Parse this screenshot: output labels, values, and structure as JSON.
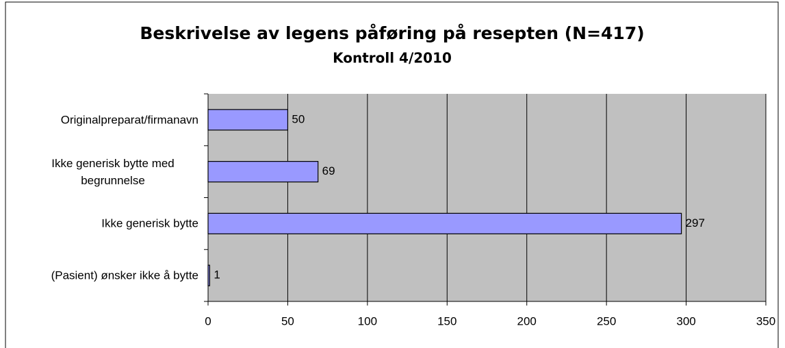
{
  "chart_data": {
    "type": "hbar",
    "title": "Beskrivelse av legens påføring på resepten (N=417)",
    "subtitle": "Kontroll 4/2010",
    "categories": [
      "Originalpreparat/firmanavn",
      "Ikke generisk bytte med begrunnelse",
      "Ikke generisk bytte",
      "(Pasient) ønsker ikke å bytte"
    ],
    "values": [
      50,
      69,
      297,
      1
    ],
    "color": "#9999ff",
    "xlim": [
      0,
      350
    ],
    "xticks": [
      0,
      50,
      100,
      150,
      200,
      250,
      300,
      350
    ],
    "grid": true
  }
}
